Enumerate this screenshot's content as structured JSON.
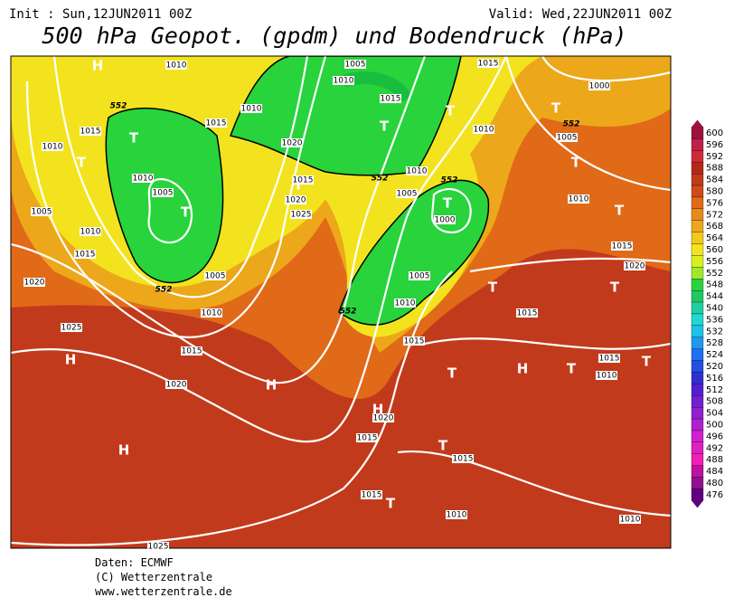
{
  "header": {
    "init": "Init : Sun,12JUN2011 00Z",
    "valid": "Valid: Wed,22JUN2011 00Z",
    "title": "500 hPa Geopot. (gpdm) und Bodendruck (hPa)"
  },
  "map": {
    "centers": [
      "H",
      "T",
      "T",
      "T",
      "T",
      "T",
      "T",
      "T",
      "T",
      "T",
      "T",
      "T",
      "H",
      "H",
      "T",
      "H",
      "T",
      "T",
      "H",
      "H",
      "T",
      "T",
      "T"
    ],
    "pressure_labels": [
      "1010",
      "1005",
      "1015",
      "1010",
      "1000",
      "1015",
      "1015",
      "1010",
      "1015",
      "1010",
      "1005",
      "1010",
      "1020",
      "1010",
      "1015",
      "1010",
      "1005",
      "1020",
      "1005",
      "1000",
      "1025",
      "1005",
      "1010",
      "1010",
      "1015",
      "1015",
      "1005",
      "1020",
      "1020",
      "1005",
      "1010",
      "1010",
      "1015",
      "1025",
      "1015",
      "1015",
      "1015",
      "1010",
      "1020",
      "1020",
      "1015",
      "1015",
      "1015",
      "1025",
      "1010",
      "1010"
    ],
    "height_labels": [
      "552",
      "552",
      "552",
      "552",
      "552",
      "552"
    ]
  },
  "legend": {
    "levels": [
      600,
      596,
      592,
      588,
      584,
      580,
      576,
      572,
      568,
      564,
      560,
      556,
      552,
      548,
      544,
      540,
      536,
      532,
      528,
      524,
      520,
      516,
      512,
      508,
      504,
      500,
      496,
      492,
      488,
      484,
      480,
      476
    ]
  },
  "footer": {
    "source": "Daten: ECMWF",
    "copyright": "(C) Wetterzentrale",
    "url": "www.wetterzentrale.de"
  }
}
